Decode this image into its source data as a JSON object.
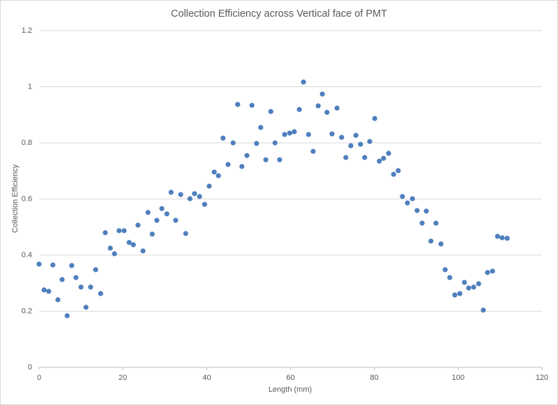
{
  "chart_data": {
    "type": "scatter",
    "title": "Collection Efficiency across Vertical face of PMT",
    "x_label": "Length (mm)",
    "y_label": "Collection Efficiency",
    "color": "#4e7fbe",
    "grid": true,
    "xlim": [
      0,
      120
    ],
    "xticks": [
      0,
      20,
      40,
      60,
      80,
      100,
      120
    ],
    "ylim": [
      0,
      1.2
    ],
    "yticks": [
      0,
      0.2,
      0.4,
      0.6,
      0.8,
      1,
      1.2
    ],
    "x": [
      0,
      1.2,
      2.3,
      3.3,
      4.5,
      5.5,
      6.7,
      7.8,
      8.8,
      10,
      11.2,
      12.3,
      13.5,
      14.7,
      15.8,
      17,
      18,
      19.1,
      20.3,
      21.5,
      22.5,
      23.6,
      24.8,
      26,
      27,
      28.1,
      29.3,
      30.5,
      31.5,
      32.6,
      33.8,
      35,
      36,
      37.1,
      38.3,
      39.5,
      40.6,
      41.8,
      42.8,
      43.9,
      45.1,
      46.3,
      47.4,
      48.4,
      49.6,
      50.8,
      51.9,
      52.9,
      54.1,
      55.3,
      56.3,
      57.4,
      58.6,
      59.8,
      60.9,
      62.1,
      63.1,
      64.3,
      65.4,
      66.6,
      67.6,
      68.7,
      69.9,
      71.1,
      72.2,
      73.2,
      74.4,
      75.6,
      76.7,
      77.7,
      78.9,
      80.1,
      81.2,
      82.2,
      83.4,
      84.6,
      85.7,
      86.7,
      87.9,
      89.1,
      90.2,
      91.4,
      92.4,
      93.5,
      94.7,
      95.9,
      96.9,
      98,
      99.2,
      100.4,
      101.5,
      102.5,
      103.7,
      104.9,
      106,
      107,
      108.2,
      109.4,
      110.5,
      111.7
    ],
    "values": [
      0.368,
      0.276,
      0.271,
      0.365,
      0.241,
      0.313,
      0.184,
      0.363,
      0.32,
      0.286,
      0.214,
      0.286,
      0.348,
      0.263,
      0.48,
      0.425,
      0.405,
      0.487,
      0.487,
      0.445,
      0.437,
      0.507,
      0.415,
      0.552,
      0.475,
      0.524,
      0.566,
      0.547,
      0.624,
      0.524,
      0.616,
      0.477,
      0.601,
      0.619,
      0.609,
      0.581,
      0.646,
      0.696,
      0.683,
      0.817,
      0.723,
      0.8,
      0.937,
      0.716,
      0.755,
      0.934,
      0.798,
      0.855,
      0.74,
      0.912,
      0.8,
      0.74,
      0.83,
      0.835,
      0.84,
      0.919,
      1.017,
      0.83,
      0.77,
      0.932,
      0.974,
      0.909,
      0.832,
      0.924,
      0.82,
      0.748,
      0.79,
      0.827,
      0.795,
      0.748,
      0.805,
      0.887,
      0.735,
      0.745,
      0.763,
      0.688,
      0.701,
      0.609,
      0.586,
      0.601,
      0.559,
      0.514,
      0.557,
      0.45,
      0.514,
      0.44,
      0.348,
      0.32,
      0.258,
      0.263,
      0.303,
      0.283,
      0.286,
      0.298,
      0.204,
      0.338,
      0.343,
      0.467,
      0.462,
      0.46
    ]
  }
}
